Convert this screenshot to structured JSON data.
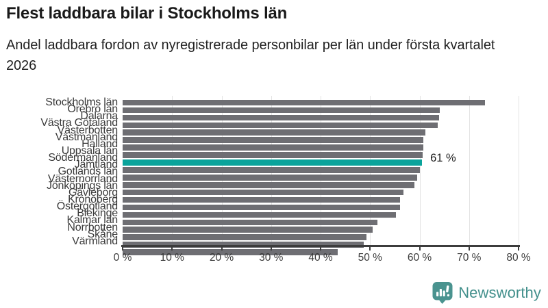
{
  "title": "Flest laddbara bilar i Stockholms län",
  "subtitle": "Andel laddbara fordon av nyregistrerade personbilar per län under första kvartalet 2026",
  "footer": {
    "brand": "Newsworthy"
  },
  "colors": {
    "bar": "#6e6e73",
    "highlight": "#0aa39b",
    "gridline": "#e3e3e3",
    "axis": "#3c3c3c",
    "brand": "#43908c"
  },
  "chart_data": {
    "type": "bar",
    "orientation": "horizontal",
    "title": "Flest laddbara bilar i Stockholms län",
    "subtitle": "Andel laddbara fordon av nyregistrerade personbilar per län under första kvartalet 2026",
    "unit": "%",
    "xlim": [
      0,
      80
    ],
    "grid": true,
    "x_ticks": [
      "0 %",
      "10 %",
      "20 %",
      "30 %",
      "40 %",
      "50 %",
      "60 %",
      "70 %",
      "80 %"
    ],
    "x_tick_values": [
      0,
      10,
      20,
      30,
      40,
      50,
      60,
      70,
      80
    ],
    "categories": [
      "Stockholms län",
      "Örebro län",
      "Dalarna",
      "Västra Götaland",
      "Västerbotten",
      "Västmanland",
      "Halland",
      "Uppsala län",
      "Södermanland",
      "Jämtland",
      "Gotlands län",
      "Västernorrland",
      "Jönköpings län",
      "Gävleborg",
      "Kronoberg",
      "Östergötland",
      "Blekinge",
      "Kalmar län",
      "Norrbotten",
      "Skåne",
      "Värmland"
    ],
    "values": [
      73.2,
      64.1,
      63.9,
      63.6,
      61.2,
      60.8,
      60.7,
      60.6,
      60.5,
      60.1,
      59.5,
      58.9,
      56.7,
      56.1,
      56.0,
      55.2,
      51.5,
      50.5,
      49.3,
      48.7,
      43.5
    ],
    "highlight_index": 8,
    "highlight_category": "Södermanland",
    "highlight_label": "61 %"
  }
}
